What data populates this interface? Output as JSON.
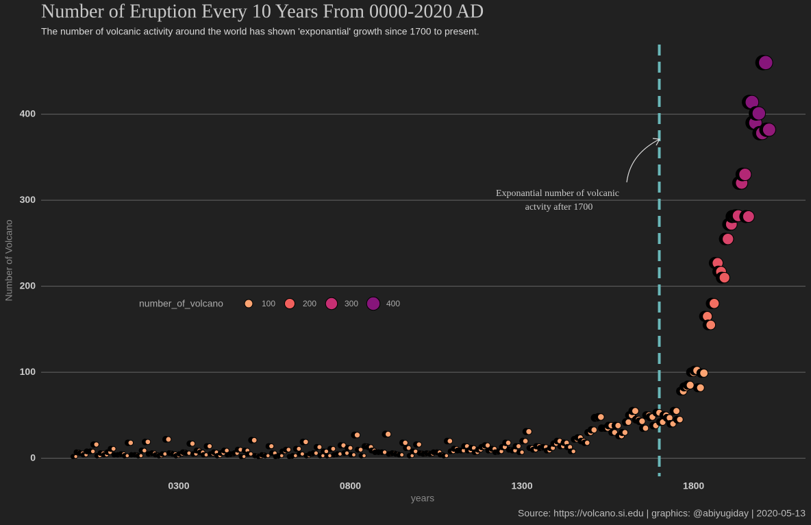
{
  "chart_data": {
    "type": "scatter",
    "title": "Number of Eruption Every 10 Years From 0000-2020 AD",
    "subtitle": "The number of volcanic activity around the world has shown 'exponantial' growth since 1700 to present.",
    "x_label": "years",
    "y_label": "Number of Volcano",
    "caption": "Source: https://volcano.si.edu | graphics: @abiyugiday | 2020-05-13",
    "annotation": {
      "lines": [
        "Exponantial number of volcanic",
        "actvity after 1700"
      ]
    },
    "vline": 1700,
    "vline_color": "#6ab7b8",
    "xlim": [
      -101,
      2126
    ],
    "ylim": [
      -25,
      485
    ],
    "xticks": [
      {
        "value": 300,
        "label": "0300"
      },
      {
        "value": 800,
        "label": "0800"
      },
      {
        "value": 1300,
        "label": "1300"
      },
      {
        "value": 1800,
        "label": "1800"
      }
    ],
    "yticks": [
      0,
      100,
      200,
      300,
      400
    ],
    "grid": true,
    "legend": {
      "title": "number_of_volcano",
      "breaks": [
        100,
        200,
        300,
        400
      ],
      "colors": [
        "#fca472",
        "#f1605d",
        "#c62f73",
        "#86157a"
      ]
    },
    "x": [
      0,
      10,
      20,
      30,
      40,
      50,
      60,
      70,
      80,
      90,
      100,
      110,
      120,
      130,
      140,
      150,
      160,
      170,
      180,
      190,
      200,
      210,
      220,
      230,
      240,
      250,
      260,
      270,
      280,
      290,
      300,
      310,
      320,
      330,
      340,
      350,
      360,
      370,
      380,
      390,
      400,
      410,
      420,
      430,
      440,
      450,
      460,
      470,
      480,
      490,
      500,
      510,
      520,
      530,
      540,
      550,
      560,
      570,
      580,
      590,
      600,
      610,
      620,
      630,
      640,
      650,
      660,
      670,
      680,
      690,
      700,
      710,
      720,
      730,
      740,
      750,
      760,
      770,
      780,
      790,
      800,
      810,
      820,
      830,
      840,
      850,
      860,
      870,
      880,
      890,
      900,
      910,
      920,
      930,
      940,
      950,
      960,
      970,
      980,
      990,
      1000,
      1010,
      1020,
      1030,
      1040,
      1050,
      1060,
      1070,
      1080,
      1090,
      1100,
      1110,
      1120,
      1130,
      1140,
      1150,
      1160,
      1170,
      1180,
      1190,
      1200,
      1210,
      1220,
      1230,
      1240,
      1250,
      1260,
      1270,
      1280,
      1290,
      1300,
      1310,
      1320,
      1330,
      1340,
      1350,
      1360,
      1370,
      1380,
      1390,
      1400,
      1410,
      1420,
      1430,
      1440,
      1450,
      1460,
      1470,
      1480,
      1490,
      1500,
      1510,
      1520,
      1530,
      1540,
      1550,
      1560,
      1570,
      1580,
      1590,
      1600,
      1610,
      1620,
      1630,
      1640,
      1650,
      1660,
      1670,
      1680,
      1690,
      1700,
      1710,
      1720,
      1730,
      1740,
      1750,
      1760,
      1770,
      1780,
      1790,
      1800,
      1810,
      1820,
      1830,
      1840,
      1850,
      1860,
      1870,
      1880,
      1890,
      1900,
      1910,
      1920,
      1930,
      1940,
      1950,
      1960,
      1970,
      1980,
      1990,
      2000,
      2010,
      2020
    ],
    "values": [
      2,
      7,
      6,
      4,
      8,
      8,
      16,
      3,
      6,
      4,
      7,
      11,
      4,
      4,
      5,
      3,
      18,
      4,
      4,
      3,
      9,
      19,
      5,
      6,
      4,
      3,
      5,
      22,
      6,
      5,
      3,
      5,
      7,
      6,
      17,
      5,
      9,
      7,
      4,
      14,
      5,
      7,
      3,
      6,
      9,
      4,
      5,
      6,
      10,
      2,
      9,
      5,
      21,
      3,
      2,
      4,
      3,
      14,
      6,
      2,
      3,
      8,
      10,
      2,
      3,
      11,
      5,
      19,
      3,
      5,
      6,
      13,
      3,
      8,
      3,
      11,
      4,
      5,
      15,
      6,
      12,
      4,
      27,
      10,
      3,
      14,
      13,
      9,
      7,
      7,
      7,
      28,
      5,
      6,
      5,
      4,
      18,
      12,
      3,
      8,
      16,
      6,
      5,
      6,
      5,
      7,
      7,
      4,
      3,
      20,
      8,
      11,
      9,
      9,
      14,
      9,
      12,
      7,
      10,
      13,
      15,
      9,
      11,
      7,
      8,
      13,
      18,
      10,
      9,
      14,
      7,
      20,
      31,
      12,
      10,
      14,
      12,
      13,
      9,
      12,
      17,
      20,
      14,
      18,
      13,
      8,
      22,
      24,
      20,
      18,
      30,
      33,
      47,
      48,
      35,
      35,
      38,
      30,
      38,
      26,
      30,
      42,
      50,
      55,
      45,
      43,
      35,
      50,
      48,
      38,
      53,
      42,
      50,
      47,
      40,
      55,
      45,
      78,
      83,
      85,
      100,
      102,
      82,
      99,
      165,
      155,
      180,
      227,
      217,
      210,
      255,
      272,
      281,
      282,
      320,
      330,
      281,
      414,
      390,
      401,
      378,
      460,
      382
    ]
  }
}
